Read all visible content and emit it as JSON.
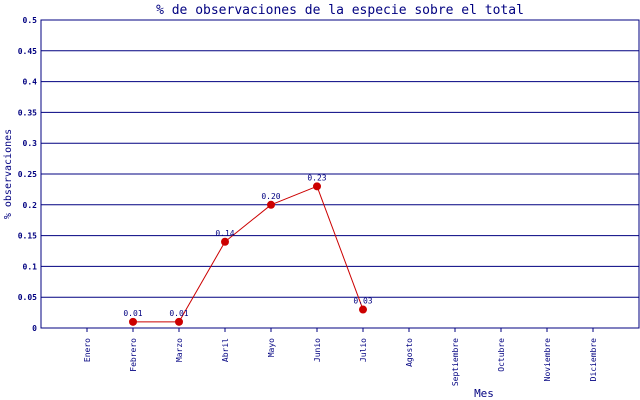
{
  "chart_data": {
    "type": "line",
    "title": "% de observaciones de la especie sobre el total",
    "xlabel": "Mes",
    "ylabel": "% observaciones",
    "categories": [
      "Enero",
      "Febrero",
      "Marzo",
      "Abril",
      "Mayo",
      "Junio",
      "Julio",
      "Agosto",
      "Septiembre",
      "Octubre",
      "Noviembre",
      "Diciembre"
    ],
    "values": [
      null,
      0.01,
      0.01,
      0.14,
      0.2,
      0.23,
      0.03,
      null,
      null,
      null,
      null,
      null
    ],
    "data_labels": [
      null,
      "0.01",
      "0.01",
      "0.14",
      "0.20",
      "0.23",
      "0.03",
      null,
      null,
      null,
      null,
      null
    ],
    "ylim": [
      0,
      0.5
    ],
    "yticks": [
      "0",
      "0.05",
      "0.1",
      "0.15",
      "0.2",
      "0.25",
      "0.3",
      "0.35",
      "0.4",
      "0.45",
      "0.5"
    ],
    "grid": true,
    "colors": {
      "axis": "#000080",
      "line": "#cc0000",
      "marker": "#cc0000",
      "text": "#000080"
    }
  }
}
